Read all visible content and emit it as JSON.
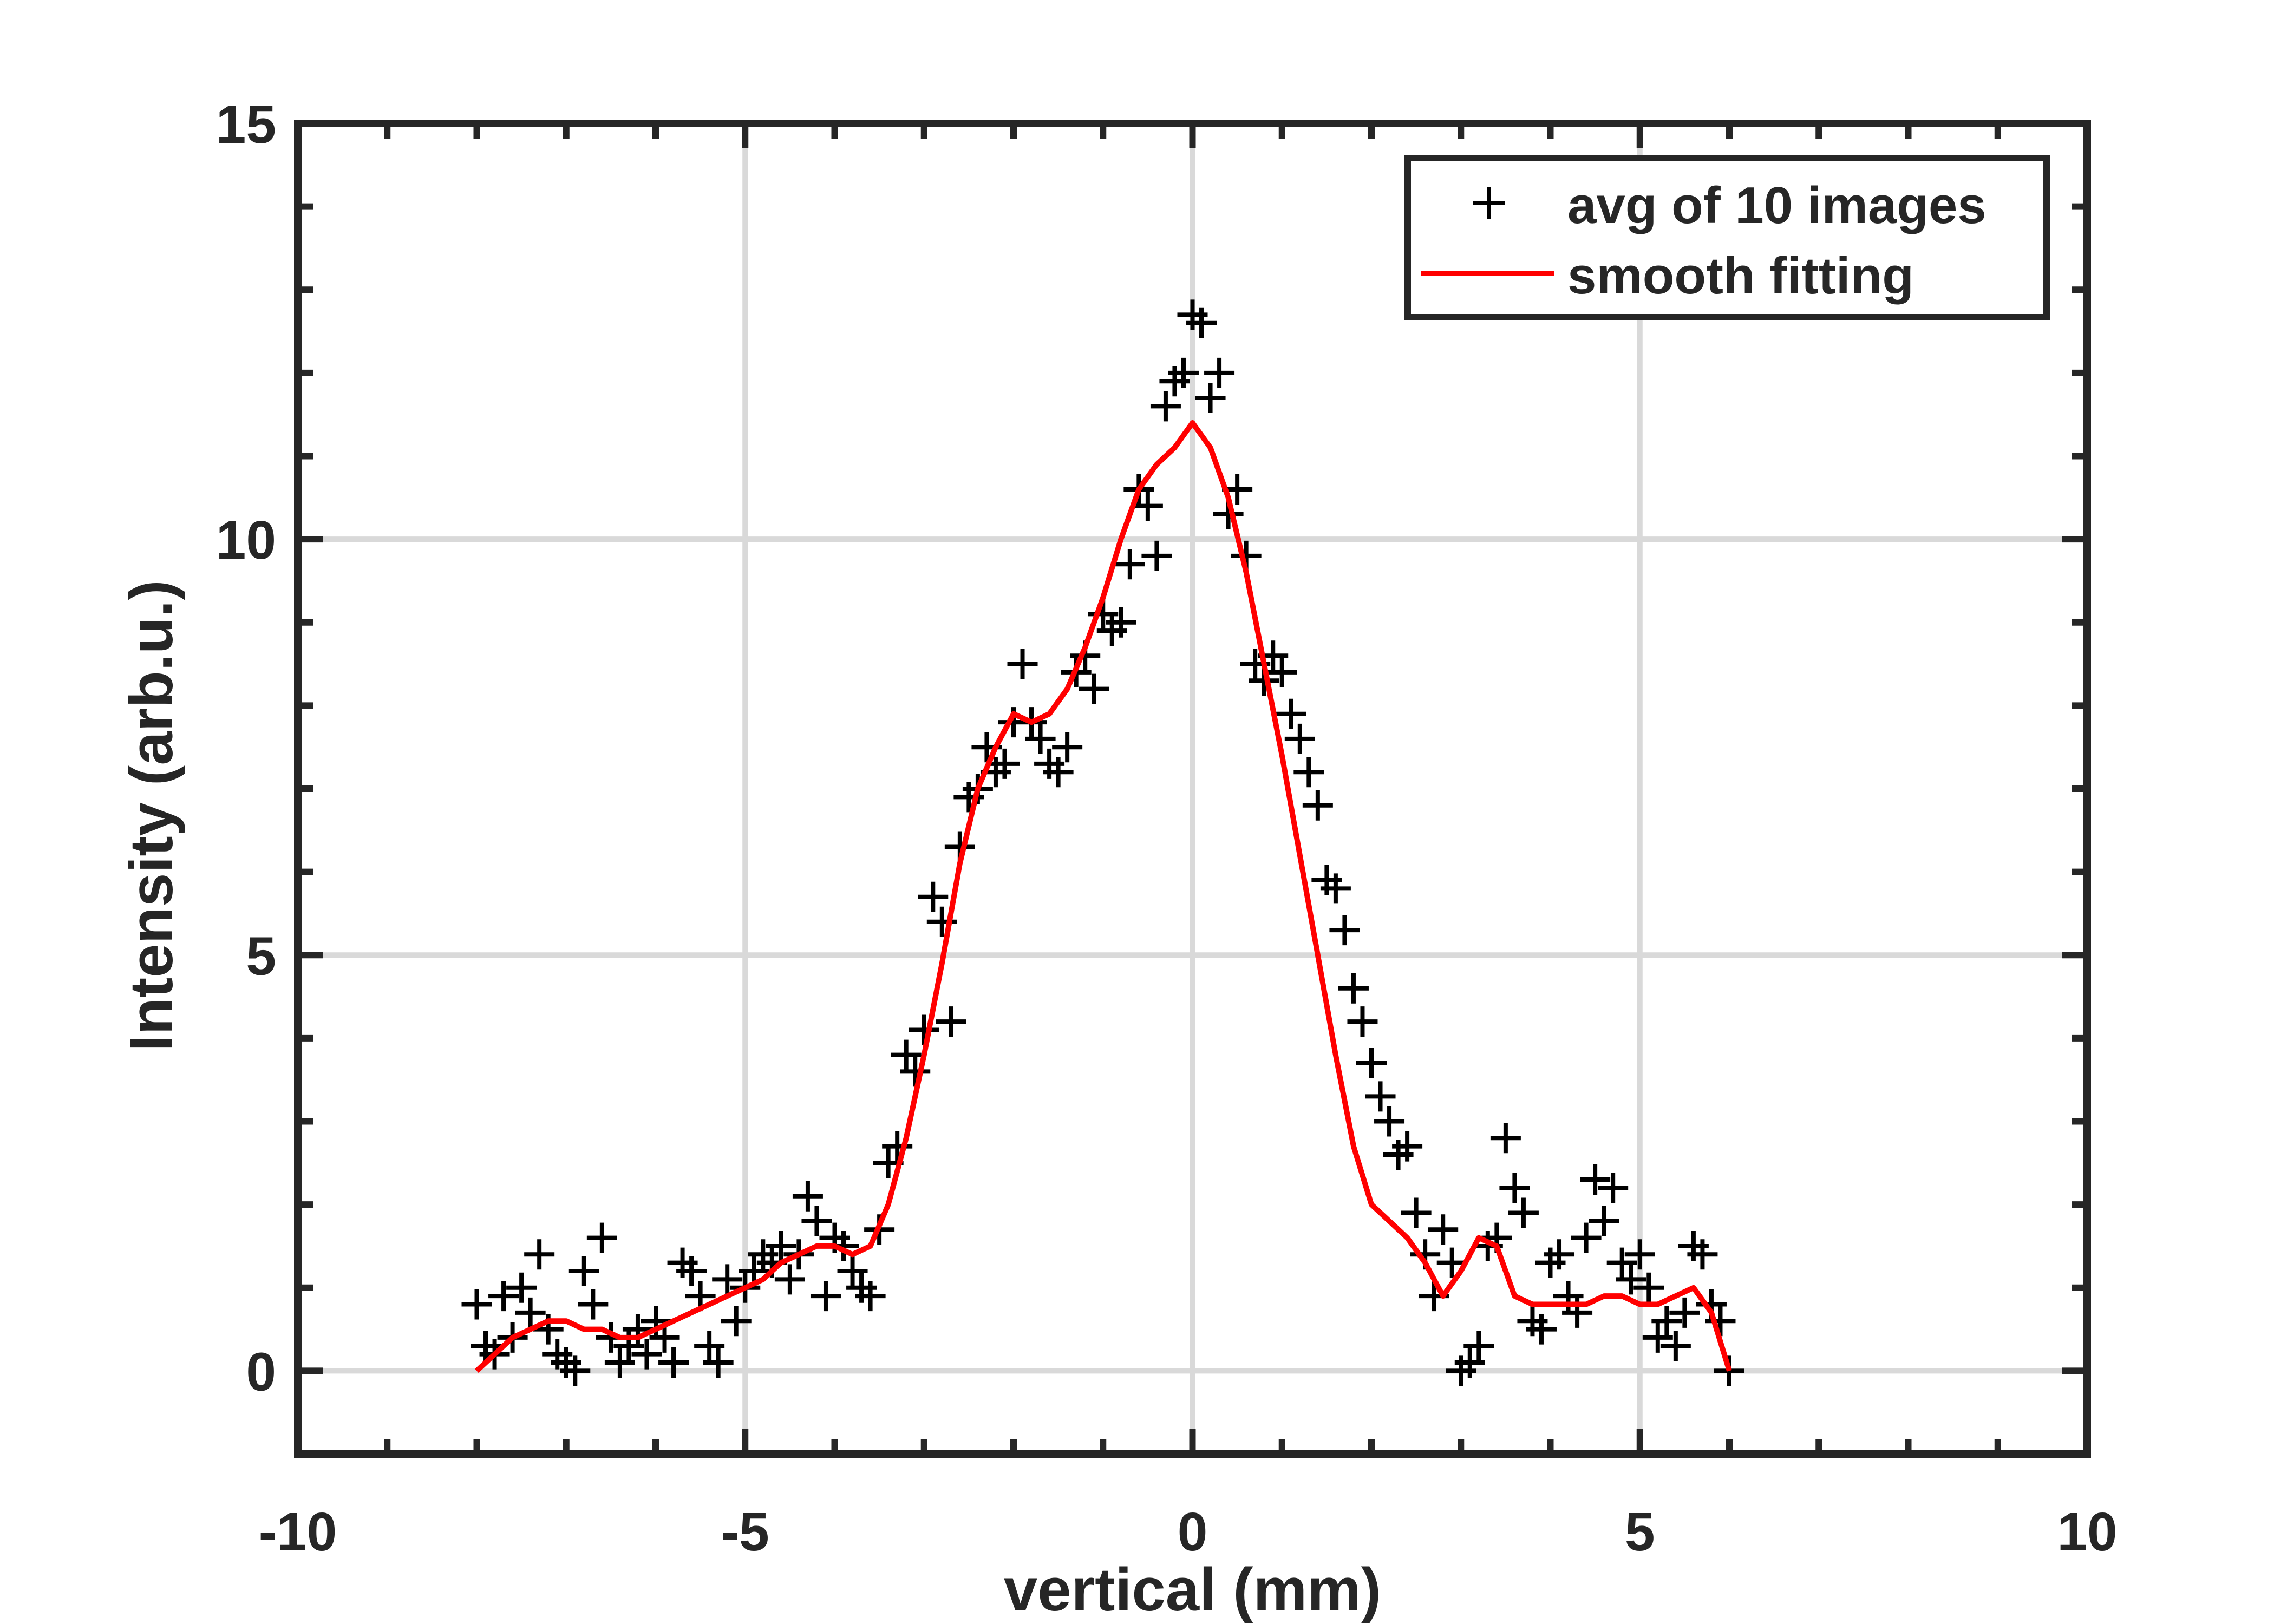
{
  "chart_data": {
    "type": "scatter",
    "title": "",
    "xlabel": "vertical (mm)",
    "ylabel": "Intensity (arb.u.)",
    "xlim": [
      -10,
      10
    ],
    "ylim": [
      -1,
      15
    ],
    "xticks": [
      -10,
      -5,
      0,
      5,
      10
    ],
    "yticks": [
      0,
      5,
      10,
      15
    ],
    "x_tick_labels": [
      "-10",
      "-5",
      "0",
      "5",
      "10"
    ],
    "y_tick_labels": [
      "0",
      "5",
      "10",
      "15"
    ],
    "grid": true,
    "legend_position": "top-right",
    "colors": {
      "axis": "#262626",
      "grid": "#d9d9d9",
      "points": "#000000",
      "fit": "#ff0000"
    },
    "series": [
      {
        "name": "avg of 10 images",
        "kind": "scatter",
        "marker": "plus",
        "x": [
          -8.0,
          -7.9,
          -7.8,
          -7.7,
          -7.6,
          -7.5,
          -7.4,
          -7.3,
          -7.2,
          -7.1,
          -7.0,
          -6.9,
          -6.8,
          -6.7,
          -6.6,
          -6.5,
          -6.4,
          -6.3,
          -6.2,
          -6.1,
          -6.0,
          -5.9,
          -5.8,
          -5.7,
          -5.6,
          -5.5,
          -5.4,
          -5.3,
          -5.2,
          -5.1,
          -5.0,
          -4.9,
          -4.8,
          -4.7,
          -4.6,
          -4.5,
          -4.4,
          -4.3,
          -4.2,
          -4.1,
          -4.0,
          -3.9,
          -3.8,
          -3.7,
          -3.6,
          -3.5,
          -3.4,
          -3.3,
          -3.2,
          -3.1,
          -3.0,
          -2.9,
          -2.8,
          -2.7,
          -2.6,
          -2.5,
          -2.4,
          -2.3,
          -2.2,
          -2.1,
          -2.0,
          -1.9,
          -1.8,
          -1.7,
          -1.6,
          -1.5,
          -1.4,
          -1.3,
          -1.2,
          -1.1,
          -1.0,
          -0.9,
          -0.8,
          -0.7,
          -0.6,
          -0.5,
          -0.4,
          -0.3,
          -0.2,
          -0.1,
          0.0,
          0.1,
          0.2,
          0.3,
          0.4,
          0.5,
          0.6,
          0.7,
          0.8,
          0.9,
          1.0,
          1.1,
          1.2,
          1.3,
          1.4,
          1.5,
          1.6,
          1.7,
          1.8,
          1.9,
          2.0,
          2.1,
          2.2,
          2.3,
          2.4,
          2.5,
          2.6,
          2.7,
          2.8,
          2.9,
          3.0,
          3.1,
          3.2,
          3.3,
          3.4,
          3.5,
          3.6,
          3.7,
          3.8,
          3.9,
          4.0,
          4.1,
          4.2,
          4.3,
          4.4,
          4.5,
          4.6,
          4.7,
          4.8,
          4.9,
          5.0,
          5.1,
          5.2,
          5.3,
          5.4,
          5.5,
          5.6,
          5.7,
          5.8,
          5.9,
          6.0
        ],
        "y": [
          0.8,
          0.3,
          0.2,
          0.9,
          0.4,
          1.0,
          0.7,
          1.4,
          0.5,
          0.2,
          0.1,
          0.0,
          1.2,
          0.8,
          1.6,
          0.4,
          0.1,
          0.3,
          0.5,
          0.2,
          0.6,
          0.4,
          0.1,
          1.3,
          1.2,
          0.9,
          0.3,
          0.1,
          1.1,
          0.6,
          1.0,
          1.2,
          1.4,
          1.3,
          1.5,
          1.1,
          1.4,
          2.1,
          1.8,
          0.9,
          1.6,
          1.5,
          1.2,
          1.0,
          0.9,
          1.7,
          2.5,
          2.7,
          3.8,
          3.6,
          4.1,
          5.7,
          5.4,
          4.2,
          6.3,
          6.9,
          7.0,
          7.5,
          7.2,
          7.3,
          7.8,
          8.5,
          7.8,
          7.6,
          7.3,
          7.2,
          7.5,
          8.4,
          8.6,
          8.2,
          9.1,
          8.9,
          9.0,
          9.7,
          10.6,
          10.4,
          9.8,
          11.6,
          11.9,
          12.0,
          12.7,
          12.6,
          11.7,
          12.0,
          10.3,
          10.6,
          9.8,
          8.5,
          8.3,
          8.6,
          8.4,
          7.9,
          7.6,
          7.2,
          6.8,
          5.9,
          5.8,
          5.3,
          4.6,
          4.2,
          3.7,
          3.3,
          3.0,
          2.6,
          2.7,
          1.9,
          1.4,
          0.9,
          1.7,
          1.3,
          0.0,
          0.1,
          0.3,
          1.5,
          1.6,
          2.8,
          2.2,
          1.9,
          0.6,
          0.5,
          1.3,
          1.4,
          0.9,
          0.7,
          1.6,
          2.3,
          1.8,
          2.2,
          1.3,
          1.1,
          1.4,
          1.0,
          0.4,
          0.6,
          0.3,
          0.7,
          1.5,
          1.4,
          0.8,
          0.6,
          0.0
        ]
      },
      {
        "name": "smooth fitting",
        "kind": "line",
        "x": [
          -8.0,
          -7.8,
          -7.6,
          -7.4,
          -7.2,
          -7.0,
          -6.8,
          -6.6,
          -6.4,
          -6.2,
          -6.0,
          -5.8,
          -5.6,
          -5.4,
          -5.2,
          -5.0,
          -4.8,
          -4.6,
          -4.4,
          -4.2,
          -4.0,
          -3.8,
          -3.6,
          -3.4,
          -3.2,
          -3.0,
          -2.8,
          -2.6,
          -2.4,
          -2.2,
          -2.0,
          -1.8,
          -1.6,
          -1.4,
          -1.2,
          -1.0,
          -0.8,
          -0.6,
          -0.4,
          -0.2,
          0.0,
          0.2,
          0.4,
          0.6,
          0.8,
          1.0,
          1.2,
          1.4,
          1.6,
          1.8,
          2.0,
          2.2,
          2.4,
          2.6,
          2.8,
          3.0,
          3.2,
          3.4,
          3.6,
          3.8,
          4.0,
          4.2,
          4.4,
          4.6,
          4.8,
          5.0,
          5.2,
          5.4,
          5.6,
          5.8,
          6.0
        ],
        "y": [
          0.0,
          0.2,
          0.4,
          0.5,
          0.6,
          0.6,
          0.5,
          0.5,
          0.4,
          0.4,
          0.5,
          0.6,
          0.7,
          0.8,
          0.9,
          1.0,
          1.1,
          1.3,
          1.4,
          1.5,
          1.5,
          1.4,
          1.5,
          2.0,
          2.8,
          3.8,
          4.9,
          6.1,
          7.0,
          7.5,
          7.9,
          7.8,
          7.9,
          8.2,
          8.7,
          9.3,
          10.0,
          10.6,
          10.9,
          11.1,
          11.4,
          11.1,
          10.5,
          9.6,
          8.5,
          7.4,
          6.2,
          5.0,
          3.8,
          2.7,
          2.0,
          1.8,
          1.6,
          1.3,
          0.9,
          1.2,
          1.6,
          1.5,
          0.9,
          0.8,
          0.8,
          0.8,
          0.8,
          0.9,
          0.9,
          0.8,
          0.8,
          0.9,
          1.0,
          0.7,
          0.0
        ]
      }
    ]
  }
}
